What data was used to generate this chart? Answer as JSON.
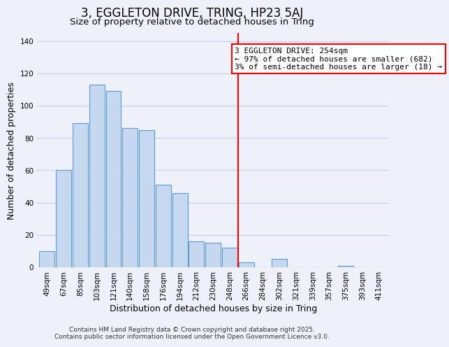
{
  "title": "3, EGGLETON DRIVE, TRING, HP23 5AJ",
  "subtitle": "Size of property relative to detached houses in Tring",
  "xlabel": "Distribution of detached houses by size in Tring",
  "ylabel": "Number of detached properties",
  "bar_labels": [
    "49sqm",
    "67sqm",
    "85sqm",
    "103sqm",
    "121sqm",
    "140sqm",
    "158sqm",
    "176sqm",
    "194sqm",
    "212sqm",
    "230sqm",
    "248sqm",
    "266sqm",
    "284sqm",
    "302sqm",
    "321sqm",
    "339sqm",
    "357sqm",
    "375sqm",
    "393sqm",
    "411sqm"
  ],
  "bar_values": [
    10,
    60,
    89,
    113,
    109,
    86,
    85,
    51,
    46,
    16,
    15,
    12,
    3,
    0,
    5,
    0,
    0,
    0,
    1,
    0,
    0
  ],
  "bar_color": "#c5d8f0",
  "bar_edge_color": "#5b9bd5",
  "vline_x": 11.5,
  "vline_color": "red",
  "annotation_title": "3 EGGLETON DRIVE: 254sqm",
  "annotation_line1": "← 97% of detached houses are smaller (682)",
  "annotation_line2": "3% of semi-detached houses are larger (18) →",
  "annotation_box_color": "white",
  "annotation_box_edge": "red",
  "ylim": [
    0,
    145
  ],
  "footer1": "Contains HM Land Registry data © Crown copyright and database right 2025.",
  "footer2": "Contains public sector information licensed under the Open Government Licence v3.0.",
  "background_color": "#eef1fa",
  "grid_color": "#c8d0e8",
  "title_fontsize": 12,
  "subtitle_fontsize": 9.5,
  "axis_label_fontsize": 9,
  "tick_fontsize": 7.5,
  "footer_fontsize": 6.5,
  "annotation_fontsize": 8
}
